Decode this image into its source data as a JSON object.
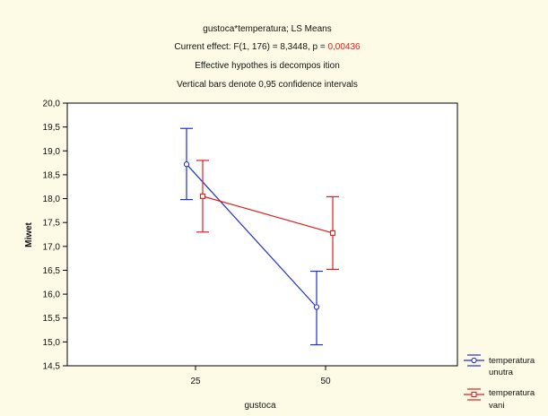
{
  "chart_data": {
    "type": "line",
    "title": "gustoca*temperatura; LS Means",
    "effect_prefix": "Current effect: F(1, 176) = 8,3448, p = ",
    "effect_p": "0,00436",
    "subtitle_2": "Effective hypothes is decompos ition",
    "subtitle_3": "Vertical bars denote 0,95 confidence intervals",
    "xlabel": "gustoca",
    "ylabel": "Miwet",
    "categories": [
      "25",
      "50"
    ],
    "ylim": [
      14.5,
      20.0
    ],
    "yticks": [
      "20,0",
      "19,5",
      "19,0",
      "18,5",
      "18,0",
      "17,5",
      "17,0",
      "16,5",
      "16,0",
      "15,5",
      "15,0",
      "14,5"
    ],
    "grid": false,
    "legend_position": "bottom-right",
    "series": [
      {
        "name": "temperatura unutra",
        "color": "#1f2fd0",
        "marker": "circle",
        "values": [
          18.72,
          15.73
        ],
        "ci_low": [
          17.98,
          14.94
        ],
        "ci_high": [
          19.47,
          16.48
        ]
      },
      {
        "name": "temperatura vani",
        "color": "#e0201e",
        "marker": "square",
        "values": [
          18.05,
          17.28
        ],
        "ci_low": [
          17.3,
          16.52
        ],
        "ci_high": [
          18.8,
          18.04
        ]
      }
    ]
  },
  "legend": {
    "item1_line1": "temperatura",
    "item1_line2": "unutra",
    "item2_line1": "temperatura",
    "item2_line2": "vani"
  }
}
